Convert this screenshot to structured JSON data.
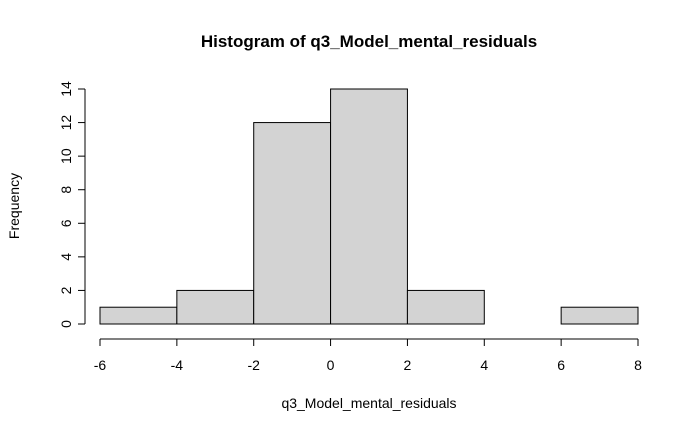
{
  "chart_data": {
    "type": "bar",
    "title": "Histogram of q3_Model_mental_residuals",
    "xlabel": "q3_Model_mental_residuals",
    "ylabel": "Frequency",
    "bins": [
      {
        "start": -6,
        "end": -4,
        "count": 1
      },
      {
        "start": -4,
        "end": -2,
        "count": 2
      },
      {
        "start": -2,
        "end": 0,
        "count": 12
      },
      {
        "start": 0,
        "end": 2,
        "count": 14
      },
      {
        "start": 2,
        "end": 4,
        "count": 2
      },
      {
        "start": 4,
        "end": 6,
        "count": 0
      },
      {
        "start": 6,
        "end": 8,
        "count": 1
      }
    ],
    "xlim": [
      -6,
      8
    ],
    "ylim": [
      0,
      14
    ],
    "x_ticks": [
      -6,
      -4,
      -2,
      0,
      2,
      4,
      6,
      8
    ],
    "y_ticks": [
      0,
      2,
      4,
      6,
      8,
      10,
      12,
      14
    ],
    "bar_color": "#d3d3d3",
    "grid": false,
    "legend": "none"
  }
}
